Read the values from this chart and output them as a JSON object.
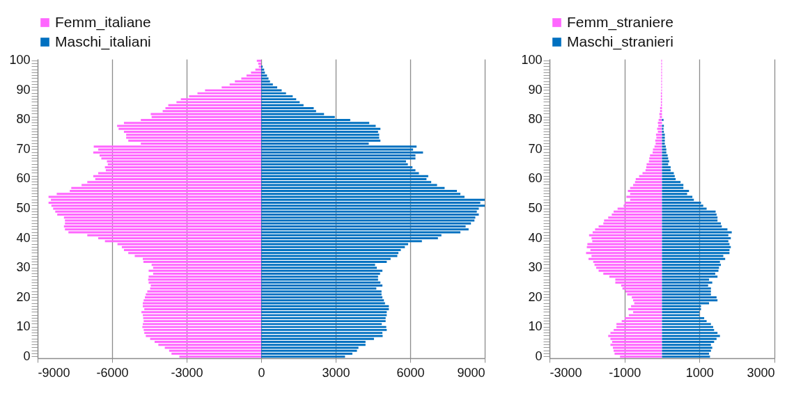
{
  "chart_data": [
    {
      "type": "bar",
      "orientation": "horizontal",
      "stacked": true,
      "legend": "top",
      "grid": "x",
      "categories": [
        "100",
        null,
        null,
        null,
        null,
        null,
        null,
        null,
        null,
        null,
        "90",
        null,
        null,
        null,
        null,
        null,
        null,
        null,
        null,
        null,
        "80",
        null,
        null,
        null,
        null,
        null,
        null,
        null,
        null,
        null,
        "70",
        null,
        null,
        null,
        null,
        null,
        null,
        null,
        null,
        null,
        "60",
        null,
        null,
        null,
        null,
        null,
        null,
        null,
        null,
        null,
        "50",
        null,
        null,
        null,
        null,
        null,
        null,
        null,
        null,
        null,
        "40",
        null,
        null,
        null,
        null,
        null,
        null,
        null,
        null,
        null,
        "30",
        null,
        null,
        null,
        null,
        null,
        null,
        null,
        null,
        null,
        "20",
        null,
        null,
        null,
        null,
        null,
        null,
        null,
        null,
        null,
        "10",
        null,
        null,
        null,
        null,
        null,
        null,
        null,
        null,
        null,
        "0"
      ],
      "xlim": [
        -9000,
        9000
      ],
      "xticks": [
        -9000,
        -6000,
        -3000,
        0,
        3000,
        6000,
        9000
      ],
      "series": [
        {
          "name": "Femm_italiane",
          "color": "#ff66ff",
          "values": [
            -175,
            -120,
            -95,
            -235,
            -410,
            -590,
            -800,
            -1060,
            -1270,
            -1590,
            -2260,
            -2565,
            -2905,
            -3235,
            -3410,
            -3740,
            -3855,
            -3965,
            -4445,
            -4410,
            -4845,
            -5525,
            -5800,
            -5740,
            -5525,
            -5435,
            -5435,
            -5350,
            -4845,
            -6740,
            -6560,
            -6760,
            -6505,
            -6435,
            -6210,
            -6175,
            -6290,
            -6255,
            -6560,
            -6760,
            -6680,
            -7000,
            -7230,
            -7645,
            -7705,
            -8230,
            -8560,
            -8465,
            -8560,
            -8445,
            -8375,
            -8290,
            -8210,
            -7940,
            -7900,
            -7900,
            -7940,
            -7900,
            -7760,
            -7000,
            -6560,
            -6290,
            -5785,
            -5610,
            -5525,
            -5350,
            -5090,
            -4765,
            -4740,
            -4410,
            -4350,
            -4530,
            -4350,
            -4530,
            -4550,
            -4530,
            -4445,
            -4470,
            -4585,
            -4645,
            -4680,
            -4730,
            -4765,
            -4765,
            -4705,
            -4820,
            -4765,
            -4750,
            -4730,
            -4765,
            -4785,
            -4730,
            -4705,
            -4645,
            -4470,
            -4290,
            -4140,
            -3880,
            -3705,
            -3610,
            -3295
          ]
        },
        {
          "name": "Maschi_italiani",
          "color": "#0070c0",
          "values": [
            0,
            0,
            60,
            120,
            150,
            235,
            295,
            355,
            470,
            645,
            825,
            1000,
            1270,
            1410,
            1550,
            1705,
            2115,
            2210,
            2530,
            2965,
            3585,
            4350,
            4610,
            4800,
            4705,
            4750,
            4750,
            4800,
            4330,
            6255,
            6115,
            6515,
            6210,
            6210,
            5830,
            5905,
            6090,
            6210,
            6350,
            6725,
            6655,
            6845,
            7080,
            7385,
            7880,
            8020,
            8185,
            9000,
            8820,
            9000,
            8760,
            8680,
            8760,
            8620,
            8585,
            8445,
            8230,
            8350,
            8020,
            7255,
            7115,
            6470,
            5915,
            5785,
            5620,
            5525,
            5480,
            5210,
            5055,
            4585,
            4655,
            4880,
            4785,
            4705,
            4705,
            4800,
            4880,
            4635,
            4845,
            4845,
            4880,
            4940,
            4985,
            5140,
            5140,
            5055,
            5055,
            5010,
            5010,
            4855,
            5035,
            5055,
            4880,
            4890,
            4540,
            4200,
            4200,
            3915,
            3855,
            3670,
            3375
          ]
        }
      ]
    },
    {
      "type": "bar",
      "orientation": "horizontal",
      "stacked": true,
      "legend": "top",
      "grid": "x",
      "categories": [
        "100",
        null,
        null,
        null,
        null,
        null,
        null,
        null,
        null,
        null,
        "90",
        null,
        null,
        null,
        null,
        null,
        null,
        null,
        null,
        null,
        "80",
        null,
        null,
        null,
        null,
        null,
        null,
        null,
        null,
        null,
        "70",
        null,
        null,
        null,
        null,
        null,
        null,
        null,
        null,
        null,
        "60",
        null,
        null,
        null,
        null,
        null,
        null,
        null,
        null,
        null,
        "50",
        null,
        null,
        null,
        null,
        null,
        null,
        null,
        null,
        null,
        "40",
        null,
        null,
        null,
        null,
        null,
        null,
        null,
        null,
        null,
        "30",
        null,
        null,
        null,
        null,
        null,
        null,
        null,
        null,
        null,
        "20",
        null,
        null,
        null,
        null,
        null,
        null,
        null,
        null,
        null,
        "10",
        null,
        null,
        null,
        null,
        null,
        null,
        null,
        null,
        null,
        "0"
      ],
      "xlim": [
        -3000,
        3000
      ],
      "xticks": [
        -3000,
        -1000,
        1000,
        3000
      ],
      "series": [
        {
          "name": "Femm_straniere",
          "color": "#ff66ff",
          "values": [
            -20,
            -20,
            -20,
            -20,
            -20,
            -20,
            -20,
            -20,
            -20,
            -20,
            -20,
            -30,
            -30,
            -30,
            -30,
            -30,
            -50,
            -50,
            -70,
            -60,
            -90,
            -110,
            -100,
            -130,
            -110,
            -160,
            -150,
            -180,
            -170,
            -200,
            -240,
            -250,
            -320,
            -340,
            -350,
            -410,
            -420,
            -440,
            -520,
            -610,
            -700,
            -720,
            -770,
            -850,
            -910,
            -850,
            -950,
            -850,
            -995,
            -1025,
            -1185,
            -1290,
            -1340,
            -1435,
            -1545,
            -1565,
            -1690,
            -1785,
            -1850,
            -1945,
            -1880,
            -1860,
            -1990,
            -2005,
            -1910,
            -2025,
            -1880,
            -1960,
            -1835,
            -1800,
            -1755,
            -1690,
            -1565,
            -1405,
            -1245,
            -1245,
            -1090,
            -1055,
            -975,
            -930,
            -805,
            -770,
            -740,
            -825,
            -900,
            -770,
            -885,
            -995,
            -1075,
            -1215,
            -1215,
            -1290,
            -1375,
            -1435,
            -1375,
            -1330,
            -1375,
            -1310,
            -1290,
            -1265,
            -1120
          ]
        },
        {
          "name": "Maschi_stranieri",
          "color": "#0070c0",
          "values": [
            0,
            0,
            0,
            0,
            0,
            0,
            0,
            0,
            0,
            0,
            0,
            0,
            0,
            0,
            0,
            0,
            0,
            0,
            0,
            0,
            40,
            0,
            50,
            40,
            50,
            75,
            75,
            75,
            75,
            100,
            115,
            115,
            150,
            165,
            190,
            165,
            230,
            230,
            315,
            340,
            365,
            495,
            570,
            570,
            720,
            670,
            810,
            850,
            1040,
            1100,
            1190,
            1430,
            1455,
            1480,
            1480,
            1570,
            1595,
            1745,
            1860,
            1770,
            1835,
            1770,
            1800,
            1835,
            1800,
            1800,
            1635,
            1685,
            1545,
            1570,
            1520,
            1505,
            1420,
            1480,
            1255,
            1340,
            1230,
            1305,
            1305,
            1305,
            1455,
            1480,
            1255,
            1040,
            1040,
            1000,
            1000,
            1125,
            1190,
            1305,
            1365,
            1390,
            1480,
            1545,
            1455,
            1390,
            1305,
            1340,
            1305,
            1255,
            1280
          ]
        }
      ]
    }
  ]
}
